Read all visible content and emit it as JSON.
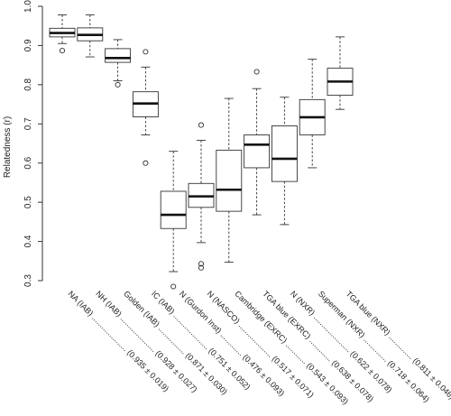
{
  "chart_data": {
    "type": "boxplot",
    "ylabel": "Relatedness (r)",
    "ylim": [
      0.27,
      1.0
    ],
    "yticks": [
      "0.3",
      "0.4",
      "0.5",
      "0.6",
      "0.7",
      "0.8",
      "0.9",
      "1.0"
    ],
    "grid": false,
    "categories": [
      "NA (IAB)",
      "NH (IAB)",
      "Golden (IAB)",
      "IC (IAB)",
      "N (Gurdon Inst)",
      "N (NASCO)",
      "Cambridge (EXRC)",
      "TGA blue (EXRC)",
      "N (NXR)",
      "Superman (NXR)",
      "TGA blue (NXR)"
    ],
    "summaries": [
      "(0.935 ± 0.019)",
      "(0.928 ± 0.027)",
      "(0.871 ± 0.030)",
      "(0.751 ± 0.052)",
      "(0.476 ± 0.093)",
      "(0.517 ± 0.071)",
      "(0.543 ± 0.093)",
      "(0.638 ± 0.078)",
      "(0.622 ± 0.078)",
      "(0.718 ± 0.064)",
      "(0.811 ± 0.046)"
    ],
    "boxes": [
      {
        "min": 0.905,
        "q1": 0.922,
        "median": 0.932,
        "q3": 0.944,
        "max": 0.978,
        "outliers": [
          0.887
        ]
      },
      {
        "min": 0.871,
        "q1": 0.912,
        "median": 0.927,
        "q3": 0.945,
        "max": 0.978,
        "outliers": []
      },
      {
        "min": 0.81,
        "q1": 0.857,
        "median": 0.868,
        "q3": 0.892,
        "max": 0.915,
        "outliers": [
          0.8
        ]
      },
      {
        "min": 0.672,
        "q1": 0.718,
        "median": 0.752,
        "q3": 0.782,
        "max": 0.845,
        "outliers": [
          0.884,
          0.6
        ]
      },
      {
        "min": 0.323,
        "q1": 0.433,
        "median": 0.468,
        "q3": 0.528,
        "max": 0.63,
        "outliers": [
          0.285
        ]
      },
      {
        "min": 0.397,
        "q1": 0.487,
        "median": 0.515,
        "q3": 0.548,
        "max": 0.658,
        "outliers": [
          0.697,
          0.343,
          0.333
        ]
      },
      {
        "min": 0.347,
        "q1": 0.477,
        "median": 0.532,
        "q3": 0.633,
        "max": 0.765,
        "outliers": []
      },
      {
        "min": 0.468,
        "q1": 0.588,
        "median": 0.647,
        "q3": 0.672,
        "max": 0.79,
        "outliers": [
          0.833
        ]
      },
      {
        "min": 0.443,
        "q1": 0.553,
        "median": 0.611,
        "q3": 0.695,
        "max": 0.768,
        "outliers": []
      },
      {
        "min": 0.588,
        "q1": 0.672,
        "median": 0.717,
        "q3": 0.762,
        "max": 0.865,
        "outliers": []
      },
      {
        "min": 0.737,
        "q1": 0.773,
        "median": 0.808,
        "q3": 0.842,
        "max": 0.922,
        "outliers": []
      }
    ]
  }
}
